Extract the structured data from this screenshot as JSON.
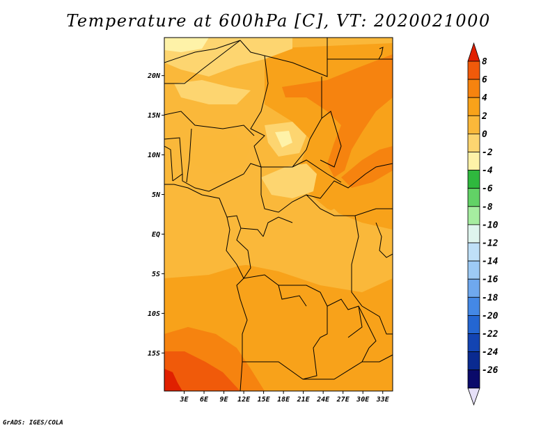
{
  "title": "Temperature at 600hPa [C], VT: 2020021000",
  "credit": "GrADS: IGES/COLA",
  "map": {
    "lat_labels": [
      "20N",
      "15N",
      "10N",
      "5N",
      "EQ",
      "5S",
      "10S",
      "15S"
    ],
    "lat_values": [
      20,
      15,
      10,
      5,
      0,
      -5,
      -10,
      -15
    ],
    "lon_labels": [
      "3E",
      "6E",
      "9E",
      "12E",
      "15E",
      "18E",
      "21E",
      "24E",
      "27E",
      "30E",
      "33E"
    ],
    "lon_values": [
      3,
      6,
      9,
      12,
      15,
      18,
      21,
      24,
      27,
      30,
      33
    ],
    "extent": {
      "lon_min": 0,
      "lon_max": 34.5,
      "lat_min": -19.8,
      "lat_max": 24.8
    }
  },
  "colorbar": {
    "labels": [
      "8",
      "6",
      "4",
      "2",
      "0",
      "-2",
      "-4",
      "-6",
      "-8",
      "-10",
      "-12",
      "-14",
      "-16",
      "-18",
      "-20",
      "-22",
      "-24",
      "-26"
    ],
    "colors": [
      "#e02000",
      "#f05a0a",
      "#f6830f",
      "#f8a21a",
      "#fab83a",
      "#fdd570",
      "#fef2a8",
      "#2fb83e",
      "#62d266",
      "#a6eda0",
      "#dff5ee",
      "#bfe0f8",
      "#9dcaf5",
      "#6fa8ee",
      "#4488e6",
      "#2466d2",
      "#1344b2",
      "#0a2a90",
      "#0a0a6a",
      "#e6e0f8"
    ]
  }
}
